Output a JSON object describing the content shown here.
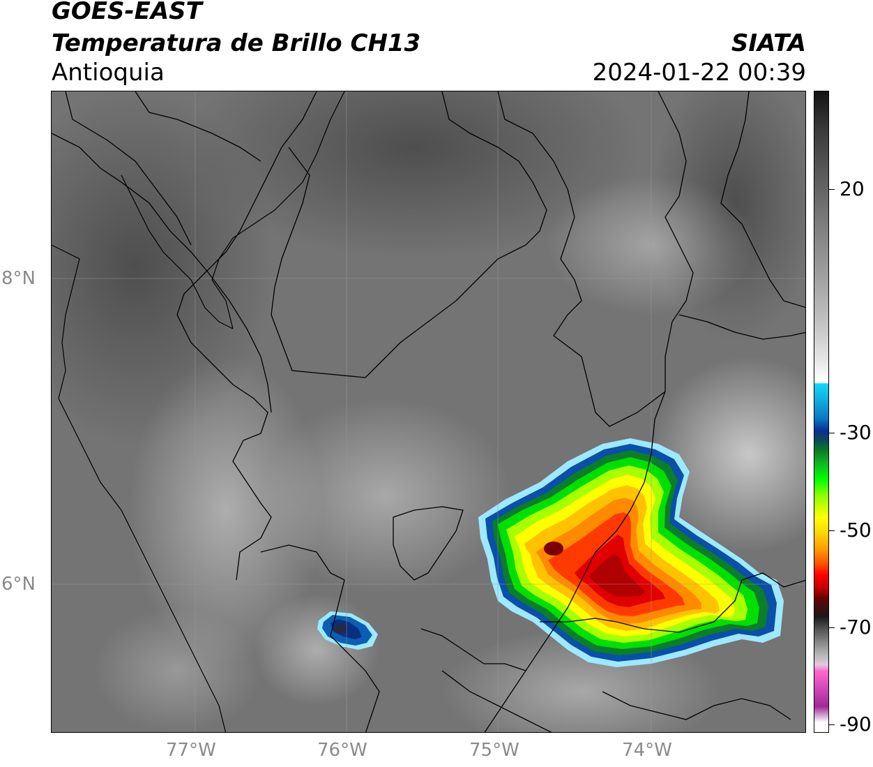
{
  "header": {
    "satellite": "GOES-EAST",
    "product": "Temperatura de Brillo CH13",
    "region": "Antioquia",
    "organization": "SIATA",
    "datetime": "2024-01-22 00:39"
  },
  "map": {
    "lat_labels": [
      "8°N",
      "6°N"
    ],
    "lon_labels": [
      "77°W",
      "76°W",
      "75°W",
      "74°W"
    ],
    "base_color": "#777777",
    "boundary_color": "#000000"
  },
  "colorbar": {
    "labels": [
      "20",
      "-30",
      "-50",
      "-70",
      "-90"
    ],
    "units_hint": ""
  }
}
